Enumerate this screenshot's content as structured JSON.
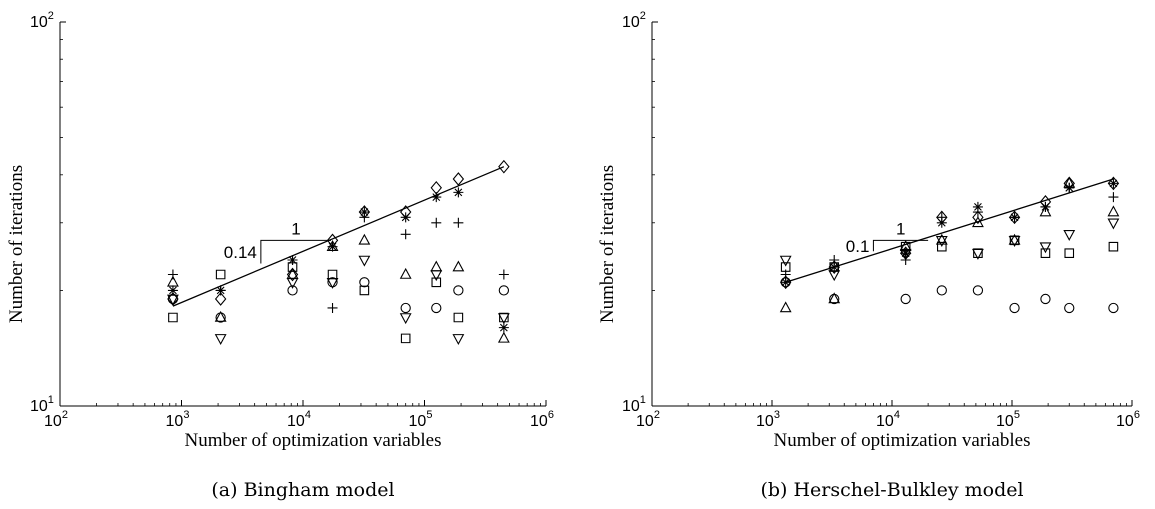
{
  "chart_data": [
    {
      "type": "scatter",
      "caption": "(a) Bingham model",
      "xlabel": "Number of optimization variables",
      "ylabel": "Number of iterations",
      "xscale": "log",
      "yscale": "log",
      "xlim": [
        100,
        1000000
      ],
      "ylim": [
        10,
        100
      ],
      "x_ticks": [
        {
          "base": "10",
          "exp": "2"
        },
        {
          "base": "10",
          "exp": "3"
        },
        {
          "base": "10",
          "exp": "4"
        },
        {
          "base": "10",
          "exp": "5"
        },
        {
          "base": "10",
          "exp": "6"
        }
      ],
      "y_ticks": [
        {
          "base": "10",
          "exp": "1"
        },
        {
          "base": "10",
          "exp": "2"
        }
      ],
      "fit_line": {
        "x": [
          850,
          450000
        ],
        "y": [
          18.2,
          42
        ]
      },
      "slope_triangle": {
        "x": [
          4500,
          17000
        ],
        "y": [
          23.5,
          27
        ],
        "run_label": "1",
        "rise_label": "0.14"
      },
      "series": [
        {
          "marker": "diamond",
          "x": [
            850,
            2100,
            8200,
            17500,
            32000,
            70000,
            125000,
            190000,
            450000
          ],
          "y": [
            19,
            19,
            22,
            27,
            32,
            32,
            37,
            39,
            42
          ]
        },
        {
          "marker": "plus",
          "x": [
            850,
            2100,
            8200,
            17500,
            32000,
            70000,
            125000,
            190000,
            450000
          ],
          "y": [
            22,
            20,
            24,
            18,
            31,
            28,
            30,
            30,
            22
          ]
        },
        {
          "marker": "asterisk",
          "x": [
            850,
            2100,
            8200,
            17500,
            32000,
            70000,
            125000,
            190000,
            450000
          ],
          "y": [
            20,
            20,
            24,
            26,
            32,
            31,
            35,
            36,
            16
          ]
        },
        {
          "marker": "square",
          "x": [
            850,
            2100,
            8200,
            17500,
            32000,
            70000,
            125000,
            190000,
            450000
          ],
          "y": [
            17,
            22,
            23,
            22,
            20,
            15,
            21,
            17,
            17
          ]
        },
        {
          "marker": "triangle-up",
          "x": [
            850,
            2100,
            8200,
            17500,
            32000,
            70000,
            125000,
            190000,
            450000
          ],
          "y": [
            21,
            17,
            22,
            26,
            27,
            22,
            23,
            23,
            15
          ]
        },
        {
          "marker": "triangle-down",
          "x": [
            850,
            2100,
            8200,
            17500,
            32000,
            70000,
            125000,
            190000,
            450000
          ],
          "y": [
            19,
            15,
            21,
            21,
            24,
            17,
            22,
            15,
            17
          ]
        },
        {
          "marker": "circle",
          "x": [
            850,
            2100,
            8200,
            17500,
            32000,
            70000,
            125000,
            190000,
            450000
          ],
          "y": [
            19,
            17,
            20,
            21,
            21,
            18,
            18,
            20,
            20
          ]
        }
      ]
    },
    {
      "type": "scatter",
      "caption": "(b) Herschel-Bulkley model",
      "xlabel": "Number of optimization variables",
      "ylabel": "Number of iterations",
      "xscale": "log",
      "yscale": "log",
      "xlim": [
        100,
        1000000
      ],
      "ylim": [
        10,
        100
      ],
      "x_ticks": [
        {
          "base": "10",
          "exp": "2"
        },
        {
          "base": "10",
          "exp": "3"
        },
        {
          "base": "10",
          "exp": "4"
        },
        {
          "base": "10",
          "exp": "5"
        },
        {
          "base": "10",
          "exp": "6"
        }
      ],
      "y_ticks": [
        {
          "base": "10",
          "exp": "1"
        },
        {
          "base": "10",
          "exp": "2"
        }
      ],
      "fit_line": {
        "x": [
          1300,
          700000
        ],
        "y": [
          21,
          39
        ]
      },
      "slope_triangle": {
        "x": [
          7000,
          20000
        ],
        "y": [
          25.3,
          27
        ],
        "run_label": "1",
        "rise_label": "0.1"
      },
      "series": [
        {
          "marker": "diamond",
          "x": [
            1300,
            3300,
            13000,
            26000,
            52000,
            105000,
            190000,
            300000,
            700000
          ],
          "y": [
            21,
            23,
            25,
            31,
            31,
            31,
            34,
            38,
            38
          ]
        },
        {
          "marker": "plus",
          "x": [
            1300,
            3300,
            13000,
            26000,
            52000,
            105000,
            190000,
            300000,
            700000
          ],
          "y": [
            22,
            24,
            24,
            31,
            32,
            31,
            33,
            37,
            35
          ]
        },
        {
          "marker": "asterisk",
          "x": [
            1300,
            3300,
            13000,
            26000,
            52000,
            105000,
            190000,
            300000,
            700000
          ],
          "y": [
            21,
            23,
            25,
            30,
            33,
            31,
            33,
            37,
            38
          ]
        },
        {
          "marker": "square",
          "x": [
            1300,
            3300,
            13000,
            26000,
            52000,
            105000,
            190000,
            300000,
            700000
          ],
          "y": [
            23,
            23,
            26,
            26,
            25,
            27,
            25,
            25,
            26
          ]
        },
        {
          "marker": "triangle-up",
          "x": [
            1300,
            3300,
            13000,
            26000,
            52000,
            105000,
            190000,
            300000,
            700000
          ],
          "y": [
            18,
            19,
            26,
            27,
            30,
            27,
            32,
            38,
            32
          ]
        },
        {
          "marker": "triangle-down",
          "x": [
            1300,
            3300,
            13000,
            26000,
            52000,
            105000,
            190000,
            300000,
            700000
          ],
          "y": [
            24,
            22,
            25,
            27,
            25,
            27,
            26,
            28,
            30
          ]
        },
        {
          "marker": "circle",
          "x": [
            1300,
            3300,
            13000,
            26000,
            52000,
            105000,
            190000,
            300000,
            700000
          ],
          "y": [
            21,
            19,
            19,
            20,
            20,
            18,
            19,
            18,
            18
          ]
        }
      ]
    }
  ]
}
